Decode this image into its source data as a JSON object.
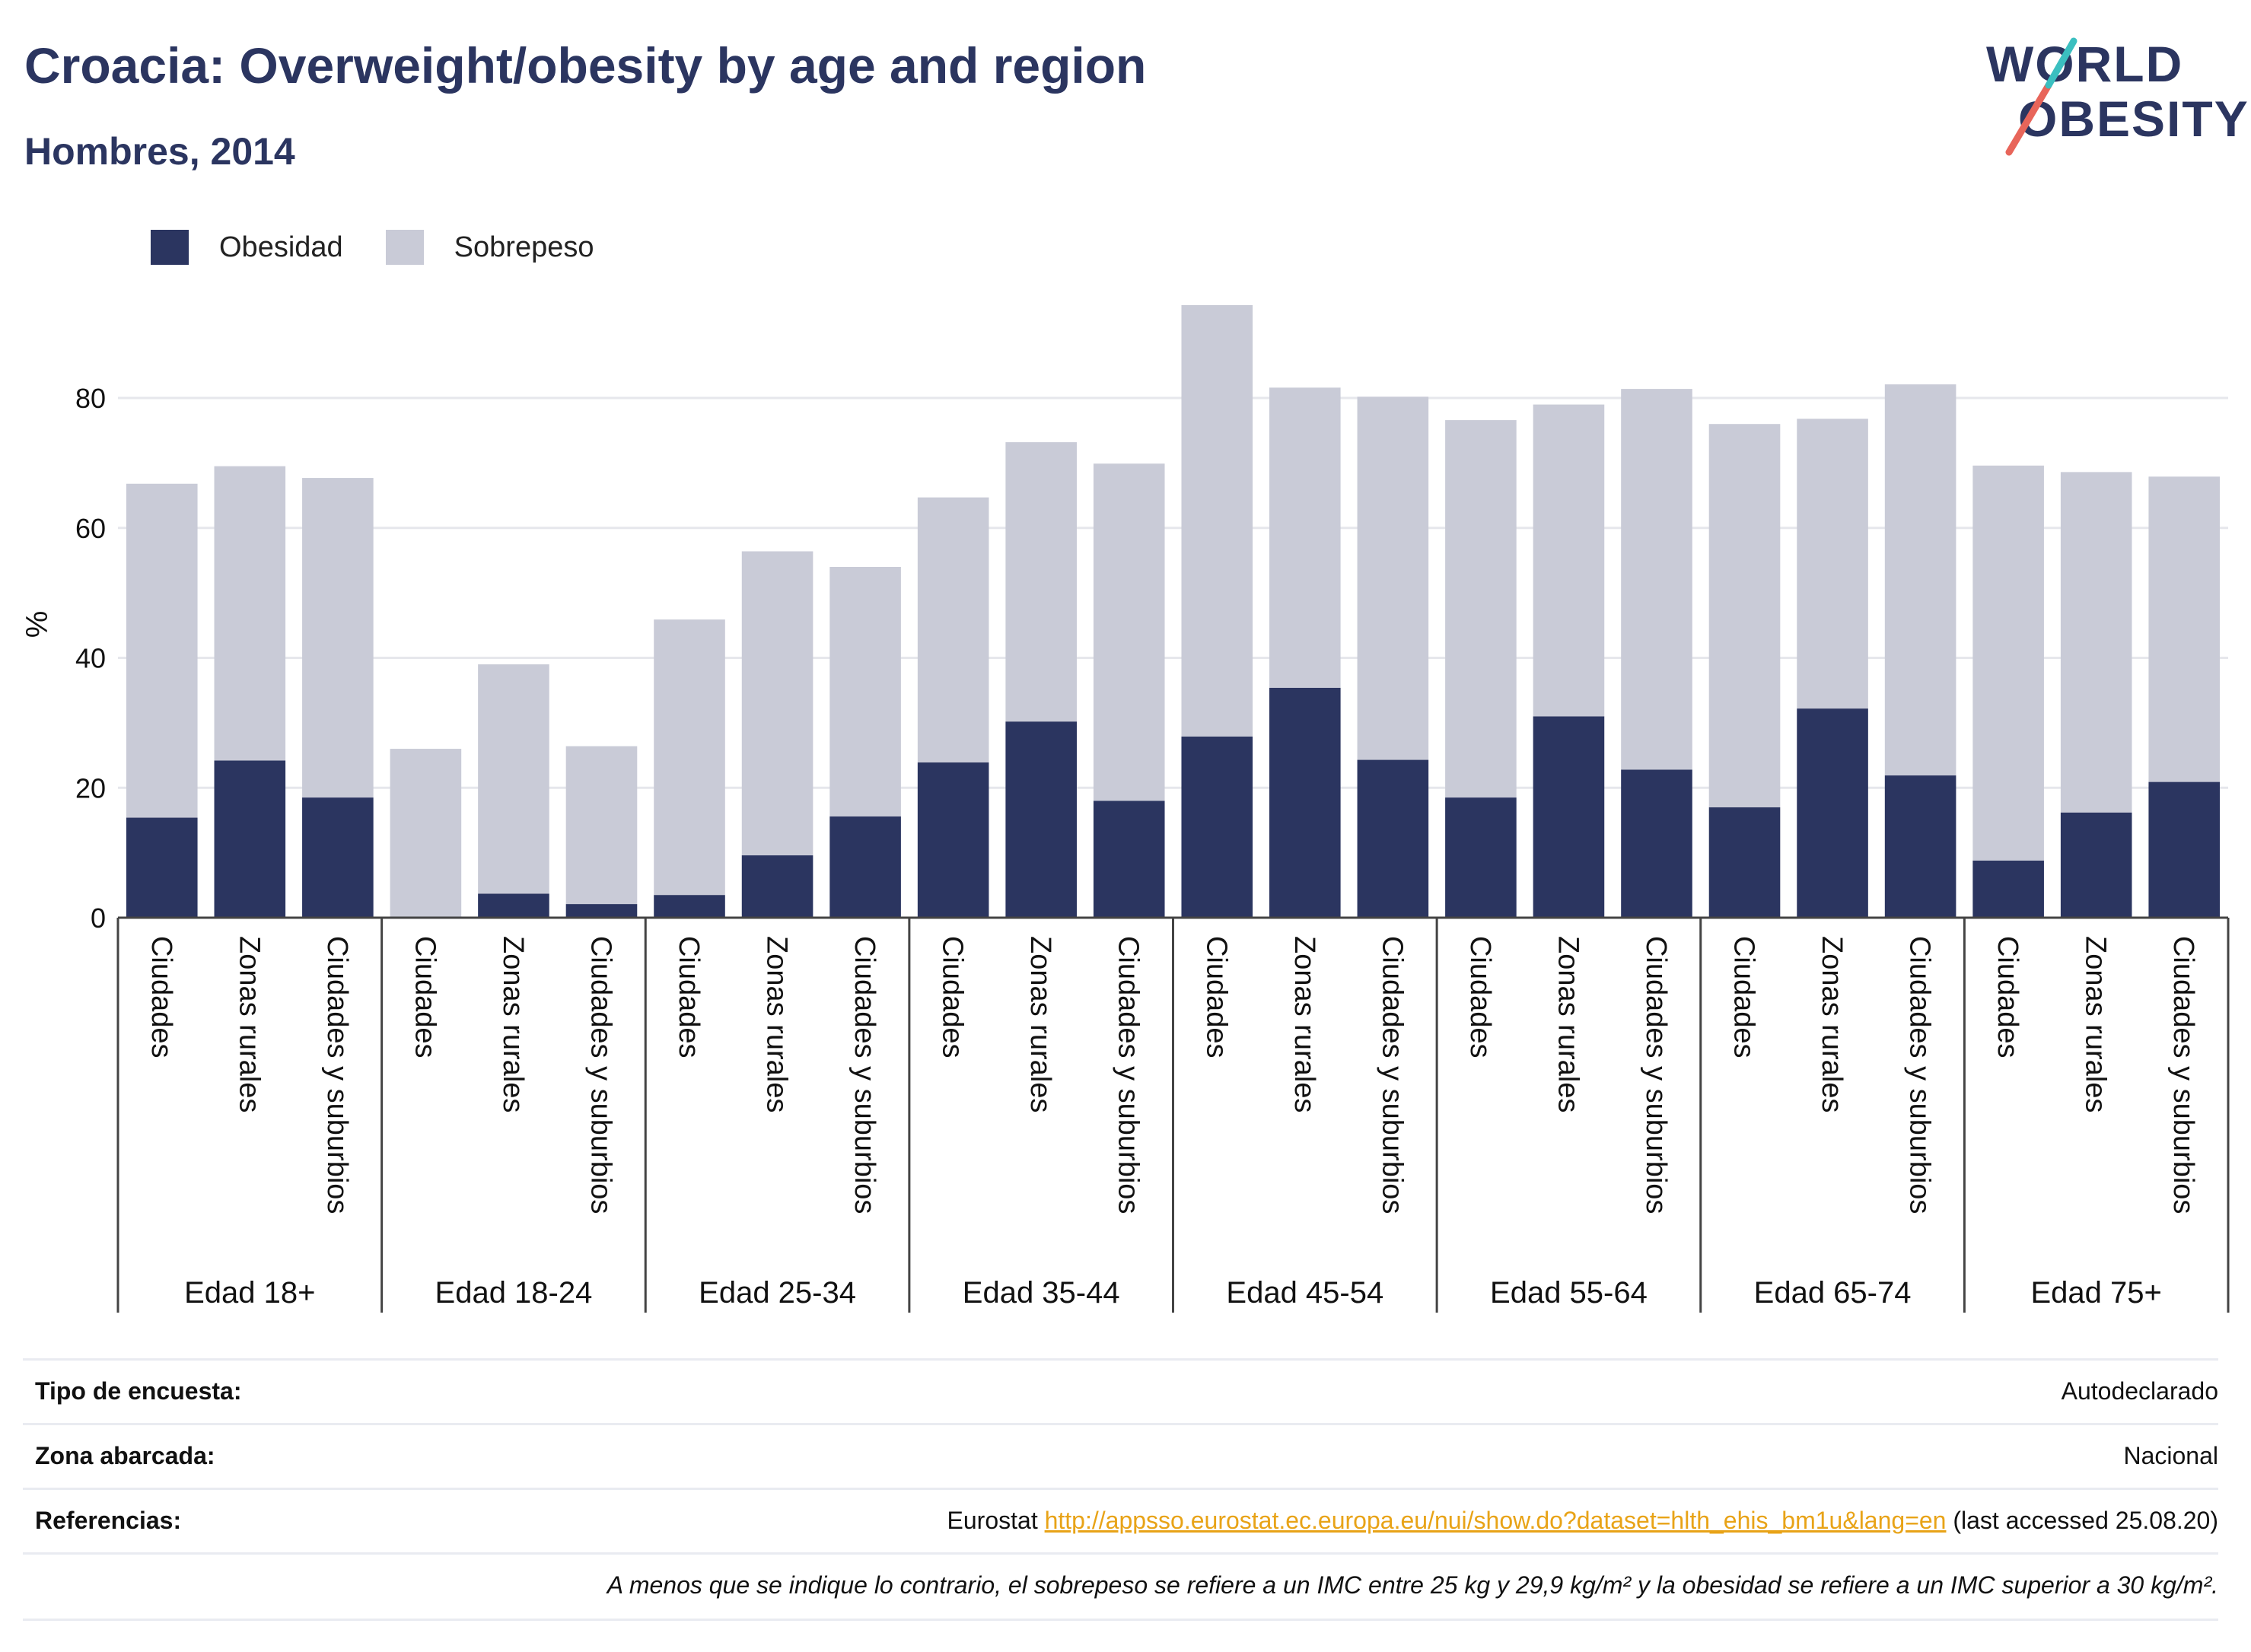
{
  "header": {
    "title": "Croacia: Overweight/obesity by age and region",
    "subtitle": "Hombres, 2014",
    "logo_line1": "WORLD",
    "logo_line2": "OBESITY"
  },
  "legend": {
    "obesity_label": "Obesidad",
    "overweight_label": "Sobrepeso"
  },
  "colors": {
    "obesity": "#2b3560",
    "overweight": "#c9cbd7",
    "logo_accent_red": "#e8655a",
    "logo_accent_teal": "#3bbfc0"
  },
  "chart_data": {
    "type": "bar",
    "stacked": true,
    "ylabel": "%",
    "ylim": [
      0,
      95
    ],
    "yticks": [
      0,
      20,
      40,
      60,
      80
    ],
    "grid": true,
    "legend_position": "top-left",
    "groups": [
      "Edad 18+",
      "Edad 18-24",
      "Edad 25-34",
      "Edad 35-44",
      "Edad 45-54",
      "Edad 55-64",
      "Edad 65-74",
      "Edad 75+"
    ],
    "subcategories": [
      "Ciudades",
      "Zonas rurales",
      "Ciudades y suburbios"
    ],
    "series": [
      {
        "name": "Obesidad",
        "values": [
          [
            15.4,
            24.2,
            18.5
          ],
          [
            0,
            3.7,
            2.1
          ],
          [
            3.5,
            9.6,
            15.6
          ],
          [
            23.9,
            30.2,
            18.0
          ],
          [
            27.9,
            35.4,
            24.3
          ],
          [
            18.5,
            31.0,
            22.8
          ],
          [
            17.0,
            32.2,
            21.9
          ],
          [
            8.8,
            16.2,
            20.9
          ]
        ]
      },
      {
        "name": "Sobrepeso",
        "values": [
          [
            51.4,
            45.3,
            49.2
          ],
          [
            26.0,
            35.3,
            24.3
          ],
          [
            42.4,
            46.8,
            38.4
          ],
          [
            40.8,
            43.0,
            51.9
          ],
          [
            66.4,
            46.2,
            55.9
          ],
          [
            58.1,
            48.0,
            58.6
          ],
          [
            59.0,
            44.6,
            60.2
          ],
          [
            60.8,
            52.4,
            47.0
          ]
        ]
      }
    ]
  },
  "info": {
    "survey_label": "Tipo de encuesta:",
    "survey_value": "Autodeclarado",
    "area_label": "Zona abarcada:",
    "area_value": "Nacional",
    "refs_label": "Referencias:",
    "refs_prefix": "Eurostat ",
    "refs_link": "http://appsso.eurostat.ec.europa.eu/nui/show.do?dataset=hlth_ehis_bm1u&lang=en",
    "refs_suffix": " (last accessed 25.08.20)",
    "note": "A menos que se indique lo contrario, el sobrepeso se refiere a un IMC entre 25 kg y 29,9 kg/m² y la obesidad se refiere a un IMC superior a 30 kg/m²."
  }
}
